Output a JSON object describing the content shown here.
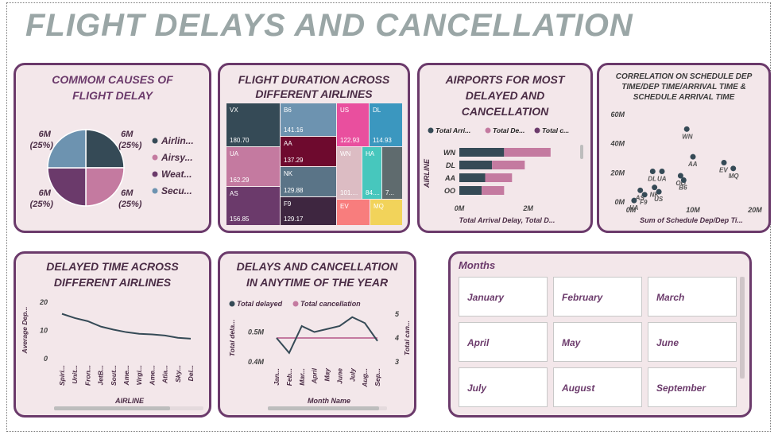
{
  "dashboard_title": "FLIGHT DELAYS AND CANCELLATION",
  "colors": {
    "dark": "#354a56",
    "pink": "#c47aa0",
    "plum": "#6b3a6b",
    "steel": "#6d93b0"
  },
  "cards": {
    "causes": {
      "title_line1": "COMMOM CAUSES OF",
      "title_line2": "FLIGHT DELAY"
    },
    "duration": {
      "title_line1": "FLIGHT DURATION ACROSS",
      "title_line2": "DIFFERENT AIRLINES"
    },
    "airports": {
      "title_line1": "AIRPORTS FOR MOST",
      "title_line2": "DELAYED AND",
      "title_line3": "CANCELLATION"
    },
    "correlation": {
      "title_line1": "CORRELATION ON SCHEDULE DEP",
      "title_line2": "TIME/DEP TIME/ARRIVAL TIME &",
      "title_line3": "SCHEDULE ARRIVAL TIME"
    },
    "delayed_time": {
      "title_line1": "DELAYED TIME ACROSS",
      "title_line2": "DIFFERENT AIRLINES"
    },
    "anytime": {
      "title_line1": "DELAYS AND CANCELLATION",
      "title_line2": "IN ANYTIME OF THE YEAR"
    }
  },
  "months_slicer": {
    "title": "Months",
    "items": [
      "January",
      "February",
      "March",
      "April",
      "May",
      "June",
      "July",
      "August",
      "September"
    ]
  },
  "chart_data": [
    {
      "type": "pie",
      "slices": [
        {
          "label": "Airlin...",
          "value": 6,
          "display": "6M",
          "pct": "(25%)",
          "color": "#354a56"
        },
        {
          "label": "Airsy...",
          "value": 6,
          "display": "6M",
          "pct": "(25%)",
          "color": "#c47aa0"
        },
        {
          "label": "Weat...",
          "value": 6,
          "display": "6M",
          "pct": "(25%)",
          "color": "#6b3a6b"
        },
        {
          "label": "Secu...",
          "value": 6,
          "display": "6M",
          "pct": "(25%)",
          "color": "#6d93b0"
        }
      ]
    },
    {
      "type": "treemap",
      "items": [
        {
          "name": "VX",
          "value": "180.70",
          "color": "#354a56"
        },
        {
          "name": "UA",
          "value": "162.29",
          "color": "#c47aa0"
        },
        {
          "name": "AS",
          "value": "156.85",
          "color": "#6b3a6b"
        },
        {
          "name": "B6",
          "value": "141.16",
          "color": "#6d93b0"
        },
        {
          "name": "AA",
          "value": "137.29",
          "color": "#6e0a2e"
        },
        {
          "name": "NK",
          "value": "129.88",
          "color": "#5a7487"
        },
        {
          "name": "F9",
          "value": "129.17",
          "color": "#3e2640"
        },
        {
          "name": "US",
          "value": "122.93",
          "color": "#e94f9e"
        },
        {
          "name": "DL",
          "value": "114.93",
          "color": "#3b97bf"
        },
        {
          "name": "WN",
          "value": "101....",
          "color": "#dcbcc3"
        },
        {
          "name": "HA",
          "value": "84....",
          "color": "#47c7bd"
        },
        {
          "name": "",
          "value": "7...",
          "color": "#5f6b6e"
        },
        {
          "name": "EV",
          "value": "",
          "color": "#f87d7d"
        },
        {
          "name": "MQ",
          "value": "",
          "color": "#f2d35a"
        }
      ]
    },
    {
      "type": "bar",
      "orientation": "horizontal",
      "stacked": true,
      "legend": [
        "Total Arri...",
        "Total De...",
        "Total c..."
      ],
      "ylabel": "AIRLINE",
      "xlabel": "Total Arrival Delay, Total D...",
      "categories": [
        "WN",
        "DL",
        "AA",
        "OO"
      ],
      "series": [
        {
          "name": "Total Arri...",
          "values": [
            1.3,
            0.95,
            0.75,
            0.65
          ],
          "color": "#354a56"
        },
        {
          "name": "Total De...",
          "values": [
            1.35,
            0.95,
            0.78,
            0.65
          ],
          "color": "#c47aa0"
        }
      ],
      "xticks": [
        "0M",
        "2M"
      ],
      "xlim": [
        0,
        3
      ]
    },
    {
      "type": "scatter",
      "xlabel": "Sum of Schedule Dep/Dep Ti...",
      "xticks": [
        "0M",
        "10M",
        "20M"
      ],
      "yticks": [
        "0M",
        "20M",
        "40M",
        "60M"
      ],
      "xlim": [
        0,
        20
      ],
      "ylim": [
        0,
        60
      ],
      "points": [
        {
          "label": "WN",
          "x": 9,
          "y": 50
        },
        {
          "label": "DL",
          "x": 3.5,
          "y": 21
        },
        {
          "label": "UA",
          "x": 5,
          "y": 21
        },
        {
          "label": "OO",
          "x": 8,
          "y": 18
        },
        {
          "label": "AA",
          "x": 10,
          "y": 31
        },
        {
          "label": "EV",
          "x": 15,
          "y": 27
        },
        {
          "label": "MQ",
          "x": 16.5,
          "y": 23
        },
        {
          "label": "B6",
          "x": 8.5,
          "y": 15
        },
        {
          "label": "NK",
          "x": 3.8,
          "y": 10
        },
        {
          "label": "AS",
          "x": 1.5,
          "y": 8
        },
        {
          "label": "F9",
          "x": 2.2,
          "y": 5
        },
        {
          "label": "US",
          "x": 4.5,
          "y": 7
        },
        {
          "label": "HA",
          "x": 0.5,
          "y": 1
        }
      ]
    },
    {
      "type": "line",
      "xlabel": "AIRLINE",
      "ylabel": "Average Dep...",
      "categories": [
        "Spiri...",
        "Unit...",
        "Fron...",
        "JetB...",
        "Sout...",
        "Ame...",
        "Virgi...",
        "Ame...",
        "Atla...",
        "Sky...",
        "Del..."
      ],
      "values": [
        15.9,
        14.4,
        13.3,
        11.4,
        10.3,
        9.4,
        8.8,
        8.6,
        8.2,
        7.4,
        7.1
      ],
      "yticks": [
        "0",
        "10",
        "20"
      ],
      "ylim": [
        0,
        22
      ]
    },
    {
      "type": "line",
      "legend": [
        "Total delayed",
        "Total cancellation"
      ],
      "xlabel": "Month Name",
      "ylabel_left": "Total dela...",
      "ylabel_right": "Total can...",
      "categories": [
        "Jan...",
        "Feb...",
        "Mar...",
        "April",
        "May",
        "June",
        "July",
        "Aug...",
        "Sep..."
      ],
      "series": [
        {
          "name": "Total delayed",
          "axis": "left",
          "values": [
            0.48,
            0.43,
            0.52,
            0.5,
            0.51,
            0.52,
            0.55,
            0.53,
            0.47
          ],
          "color": "#354a56"
        },
        {
          "name": "Total cancellation",
          "axis": "right",
          "values": [
            4,
            4,
            4,
            4,
            4,
            4,
            4,
            4,
            4
          ],
          "color": "#c47aa0"
        }
      ],
      "yticks_left": [
        "0.4M",
        "0.5M"
      ],
      "yticks_right": [
        "3",
        "4",
        "5"
      ]
    }
  ]
}
